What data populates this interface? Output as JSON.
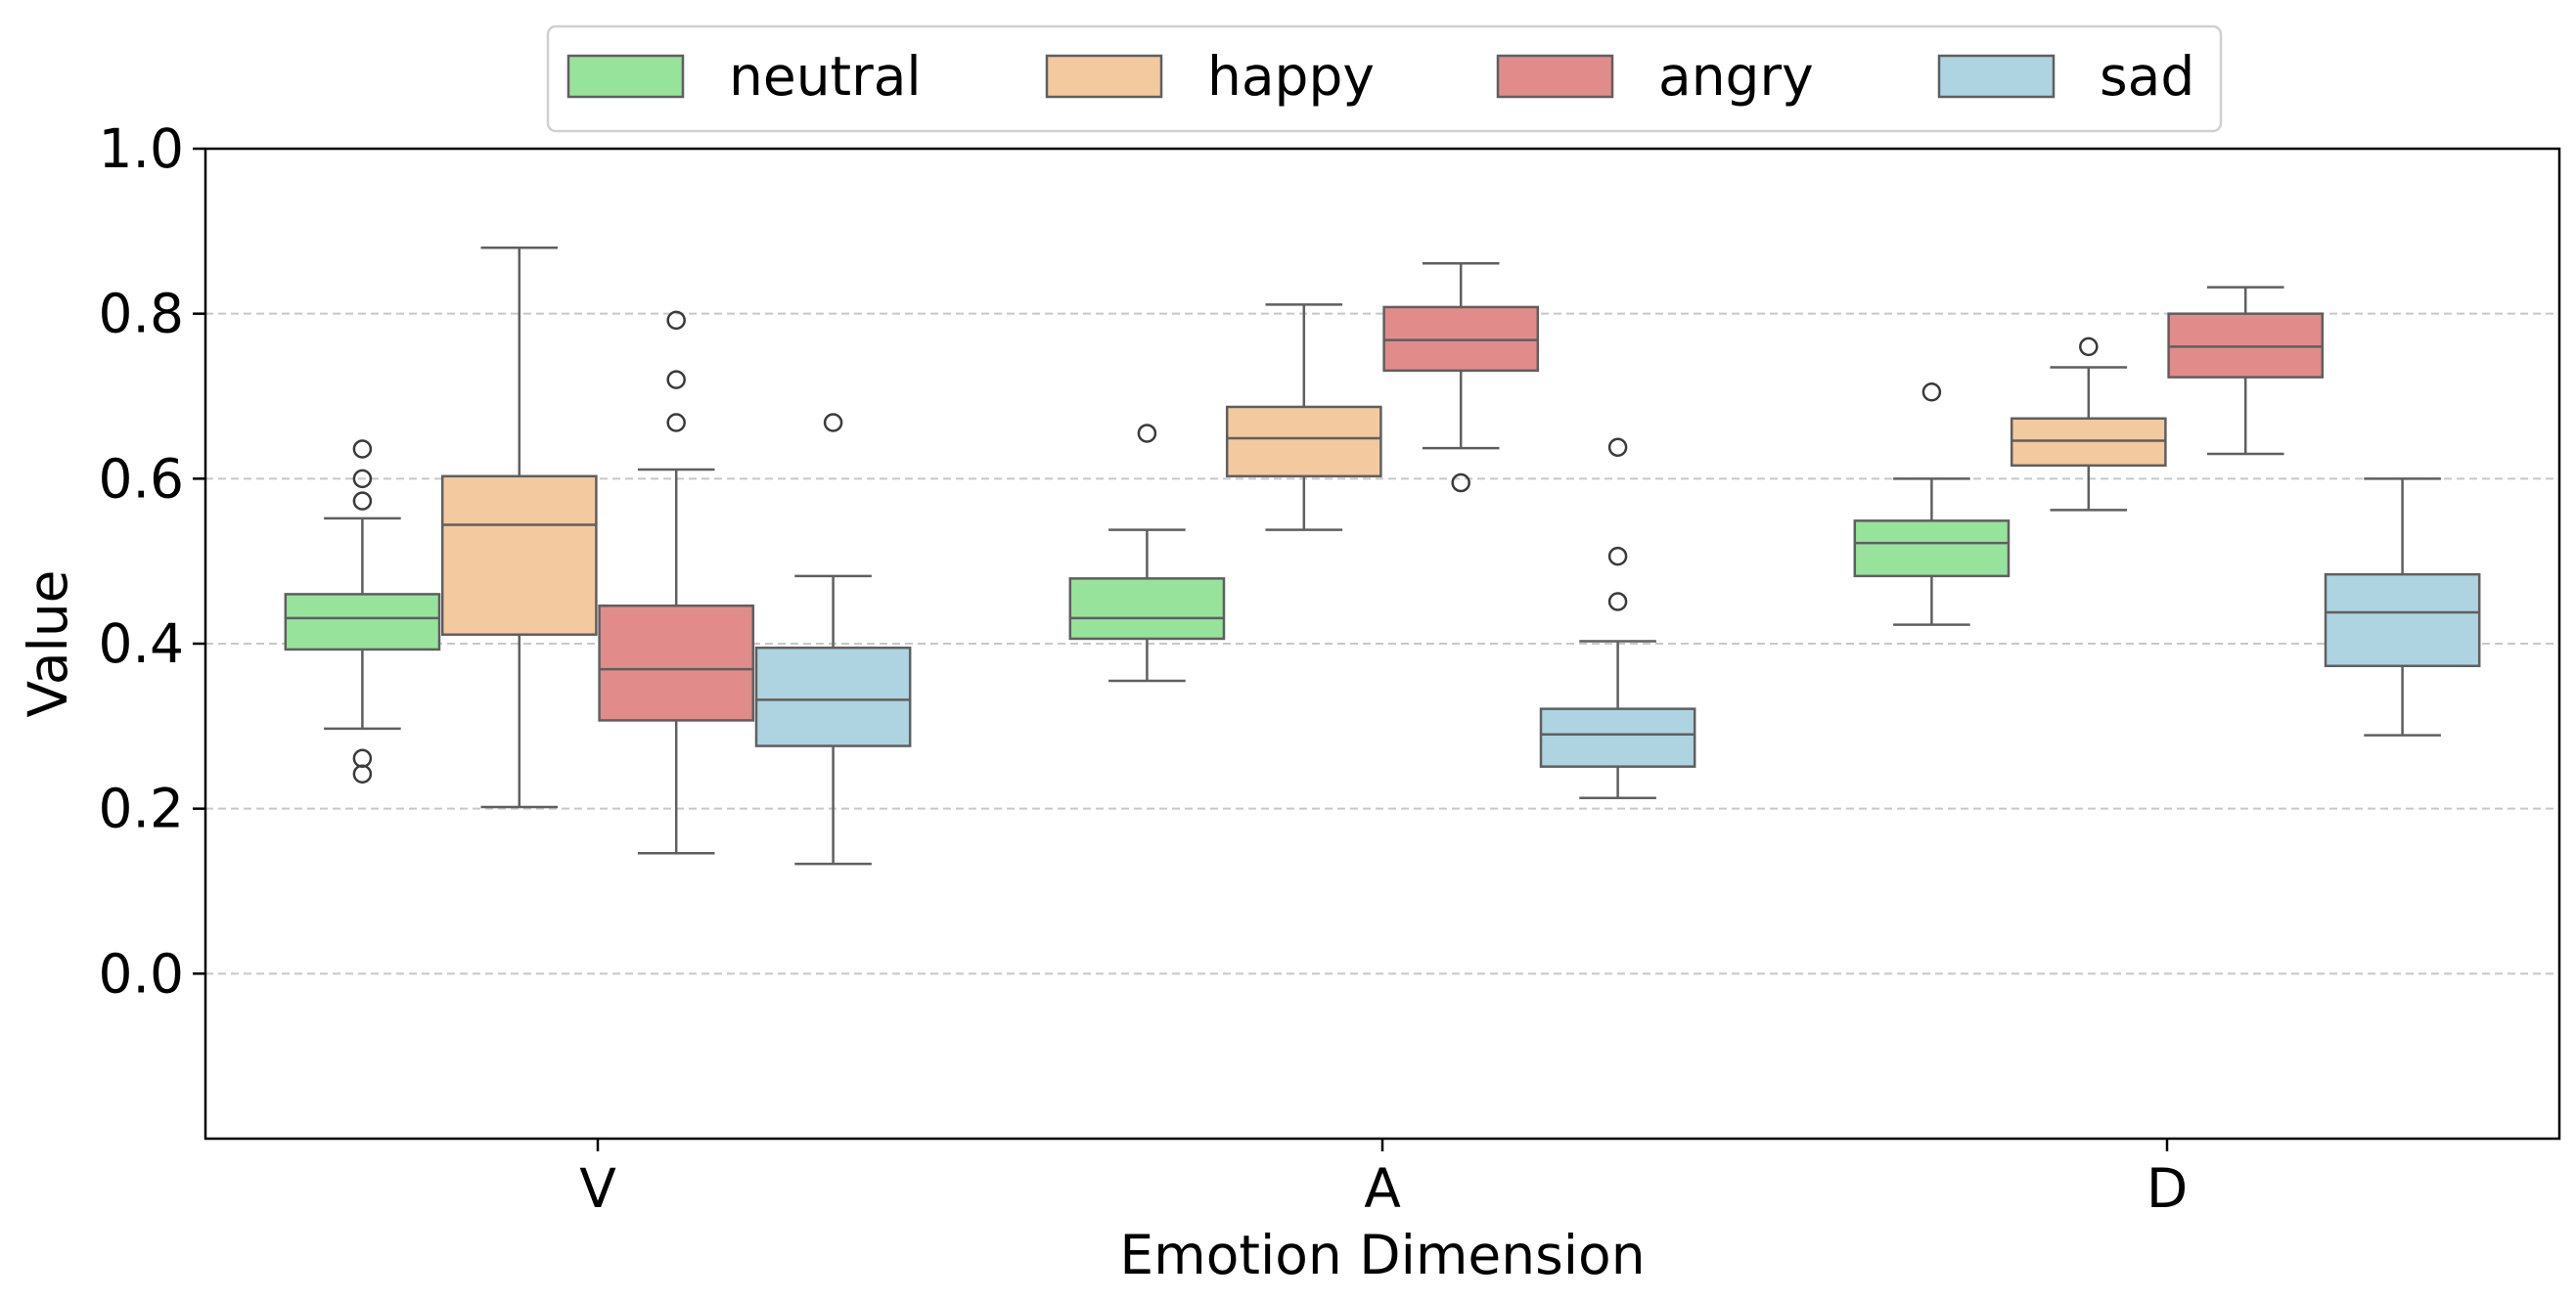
{
  "chart_data": {
    "type": "boxplot",
    "title": "",
    "xlabel": "Emotion Dimension",
    "ylabel": "Value",
    "ylim": [
      -0.2,
      1.0
    ],
    "yticks": [
      "0.0",
      "0.2",
      "0.4",
      "0.6",
      "0.8",
      "1.0"
    ],
    "ytick_values": [
      0.0,
      0.2,
      0.4,
      0.6,
      0.8,
      1.0
    ],
    "grid": "horizontal dashed",
    "legend_position": "top-center",
    "categories": [
      "V",
      "A",
      "D"
    ],
    "series": [
      {
        "name": "neutral",
        "color": "#98e39b",
        "boxes": [
          {
            "whisker_low": 0.297,
            "q1": 0.393,
            "median": 0.431,
            "q3": 0.46,
            "whisker_high": 0.552,
            "outliers": [
              0.636,
              0.6,
              0.573,
              0.261,
              0.242
            ]
          },
          {
            "whisker_low": 0.355,
            "q1": 0.406,
            "median": 0.431,
            "q3": 0.479,
            "whisker_high": 0.538,
            "outliers": [
              0.655
            ]
          },
          {
            "whisker_low": 0.423,
            "q1": 0.482,
            "median": 0.522,
            "q3": 0.549,
            "whisker_high": 0.6,
            "outliers": [
              0.705
            ]
          }
        ]
      },
      {
        "name": "happy",
        "color": "#f3c9a0",
        "boxes": [
          {
            "whisker_low": 0.202,
            "q1": 0.411,
            "median": 0.544,
            "q3": 0.603,
            "whisker_high": 0.88,
            "outliers": []
          },
          {
            "whisker_low": 0.538,
            "q1": 0.603,
            "median": 0.649,
            "q3": 0.687,
            "whisker_high": 0.811,
            "outliers": []
          },
          {
            "whisker_low": 0.562,
            "q1": 0.616,
            "median": 0.646,
            "q3": 0.673,
            "whisker_high": 0.735,
            "outliers": [
              0.76
            ]
          }
        ]
      },
      {
        "name": "angry",
        "color": "#e28b8b",
        "boxes": [
          {
            "whisker_low": 0.146,
            "q1": 0.307,
            "median": 0.369,
            "q3": 0.446,
            "whisker_high": 0.611,
            "outliers": [
              0.792,
              0.72,
              0.668
            ]
          },
          {
            "whisker_low": 0.637,
            "q1": 0.731,
            "median": 0.768,
            "q3": 0.808,
            "whisker_high": 0.861,
            "outliers": [
              0.595
            ]
          },
          {
            "whisker_low": 0.63,
            "q1": 0.723,
            "median": 0.76,
            "q3": 0.8,
            "whisker_high": 0.832,
            "outliers": []
          }
        ]
      },
      {
        "name": "sad",
        "color": "#add4e0",
        "boxes": [
          {
            "whisker_low": 0.133,
            "q1": 0.276,
            "median": 0.332,
            "q3": 0.395,
            "whisker_high": 0.482,
            "outliers": [
              0.668
            ]
          },
          {
            "whisker_low": 0.213,
            "q1": 0.251,
            "median": 0.29,
            "q3": 0.321,
            "whisker_high": 0.403,
            "outliers": [
              0.638,
              0.506,
              0.451
            ]
          },
          {
            "whisker_low": 0.289,
            "q1": 0.373,
            "median": 0.438,
            "q3": 0.484,
            "whisker_high": 0.6,
            "outliers": []
          }
        ]
      }
    ]
  }
}
